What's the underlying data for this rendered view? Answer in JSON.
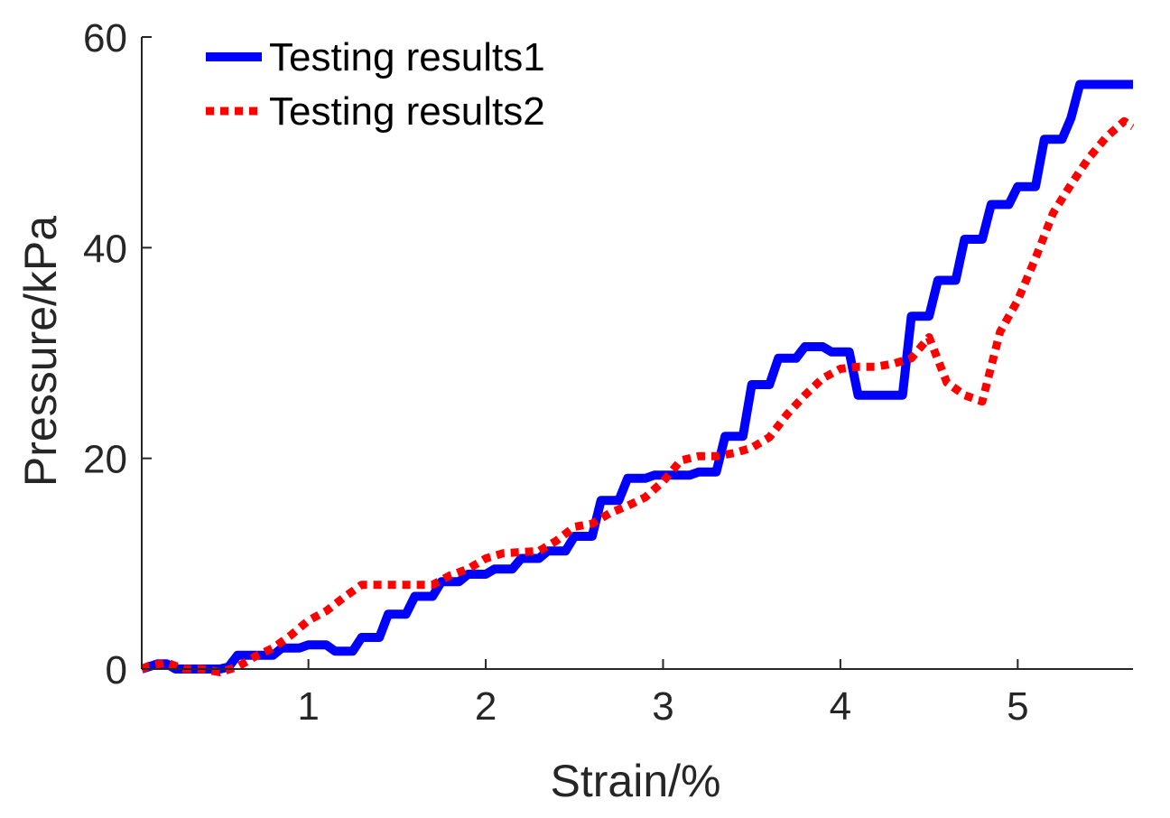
{
  "chart_data": {
    "type": "line",
    "xlabel": "Strain/%",
    "ylabel": "Pressure/kPa",
    "xlim": [
      0.06,
      5.65
    ],
    "ylim": [
      0,
      60
    ],
    "xticks": [
      1,
      2,
      3,
      4,
      5
    ],
    "yticks": [
      0,
      20,
      40,
      60
    ],
    "grid": false,
    "legend_position": "top-left",
    "series": [
      {
        "name": "Testing results1",
        "color": "#0000ff",
        "style": "solid",
        "x": [
          0.06,
          0.15,
          0.2,
          0.25,
          0.3,
          0.4,
          0.5,
          0.55,
          0.6,
          0.65,
          0.7,
          0.75,
          0.8,
          0.85,
          0.9,
          0.95,
          1.0,
          1.05,
          1.1,
          1.15,
          1.2,
          1.25,
          1.3,
          1.35,
          1.4,
          1.45,
          1.5,
          1.55,
          1.6,
          1.65,
          1.7,
          1.75,
          1.8,
          1.85,
          1.9,
          1.95,
          2.0,
          2.05,
          2.1,
          2.15,
          2.2,
          2.25,
          2.3,
          2.35,
          2.4,
          2.45,
          2.5,
          2.55,
          2.6,
          2.65,
          2.7,
          2.75,
          2.8,
          2.85,
          2.9,
          2.95,
          3.0,
          3.05,
          3.1,
          3.15,
          3.2,
          3.25,
          3.3,
          3.35,
          3.4,
          3.45,
          3.5,
          3.55,
          3.6,
          3.65,
          3.7,
          3.75,
          3.8,
          3.85,
          3.9,
          3.95,
          4.0,
          4.05,
          4.1,
          4.15,
          4.2,
          4.25,
          4.3,
          4.35,
          4.4,
          4.45,
          4.5,
          4.55,
          4.6,
          4.65,
          4.7,
          4.75,
          4.8,
          4.85,
          4.9,
          4.95,
          5.0,
          5.05,
          5.1,
          5.15,
          5.2,
          5.25,
          5.3,
          5.35,
          5.4,
          5.45,
          5.5,
          5.55,
          5.6,
          5.65
        ],
        "y": [
          0,
          0.5,
          0.5,
          0,
          0,
          0,
          0,
          0.2,
          1.3,
          1.3,
          1.3,
          1.3,
          1.3,
          2.0,
          2.0,
          2.0,
          2.3,
          2.3,
          2.3,
          1.7,
          1.7,
          1.7,
          3.0,
          3.0,
          3.0,
          5.2,
          5.2,
          5.2,
          6.9,
          6.9,
          6.9,
          8.3,
          8.3,
          8.3,
          9.0,
          9.0,
          9.0,
          9.5,
          9.5,
          9.5,
          10.5,
          10.5,
          10.5,
          11.2,
          11.2,
          11.2,
          12.6,
          12.6,
          12.6,
          16.0,
          16.0,
          16.0,
          18.1,
          18.1,
          18.1,
          18.4,
          18.4,
          18.4,
          18.4,
          18.4,
          18.7,
          18.7,
          18.7,
          22.1,
          22.1,
          22.1,
          27.0,
          27.0,
          27.0,
          29.5,
          29.5,
          29.5,
          30.6,
          30.6,
          30.6,
          30.1,
          30.1,
          30.1,
          26.0,
          26.0,
          26.0,
          26.0,
          26.0,
          26.0,
          33.5,
          33.5,
          33.5,
          36.9,
          36.9,
          36.9,
          40.8,
          40.8,
          40.8,
          44.1,
          44.1,
          44.1,
          45.8,
          45.8,
          45.8,
          50.3,
          50.3,
          50.3,
          52.3,
          55.5,
          55.5,
          55.5,
          55.5,
          55.5,
          55.5,
          55.5
        ]
      },
      {
        "name": "Testing results2",
        "color": "#ff0000",
        "style": "dotted",
        "x": [
          0.06,
          0.1,
          0.2,
          0.3,
          0.4,
          0.5,
          0.6,
          0.7,
          0.8,
          0.9,
          1.0,
          1.1,
          1.2,
          1.3,
          1.4,
          1.5,
          1.6,
          1.7,
          1.8,
          1.9,
          2.0,
          2.1,
          2.2,
          2.3,
          2.4,
          2.5,
          2.6,
          2.7,
          2.8,
          2.9,
          3.0,
          3.1,
          3.2,
          3.3,
          3.4,
          3.5,
          3.6,
          3.7,
          3.8,
          3.9,
          4.0,
          4.1,
          4.2,
          4.3,
          4.4,
          4.5,
          4.6,
          4.7,
          4.8,
          4.9,
          5.0,
          5.1,
          5.2,
          5.3,
          5.4,
          5.5,
          5.6,
          5.65
        ],
        "y": [
          0,
          0.3,
          0.6,
          0,
          0,
          -0.3,
          0.2,
          1.2,
          2.0,
          3.2,
          4.6,
          5.5,
          6.8,
          8.0,
          8.0,
          8.0,
          8.0,
          8.0,
          8.9,
          9.5,
          10.5,
          11.0,
          11.1,
          11.2,
          12.2,
          13.5,
          13.8,
          14.8,
          15.5,
          16.3,
          17.8,
          19.8,
          20.2,
          20.2,
          20.5,
          21.0,
          22.0,
          24.2,
          26.0,
          27.6,
          28.5,
          28.7,
          28.7,
          29.0,
          29.5,
          31.5,
          27.2,
          26.0,
          25.4,
          32.0,
          35.0,
          39.0,
          43.3,
          46.0,
          48.5,
          50.5,
          52.0,
          51.5
        ]
      }
    ]
  }
}
